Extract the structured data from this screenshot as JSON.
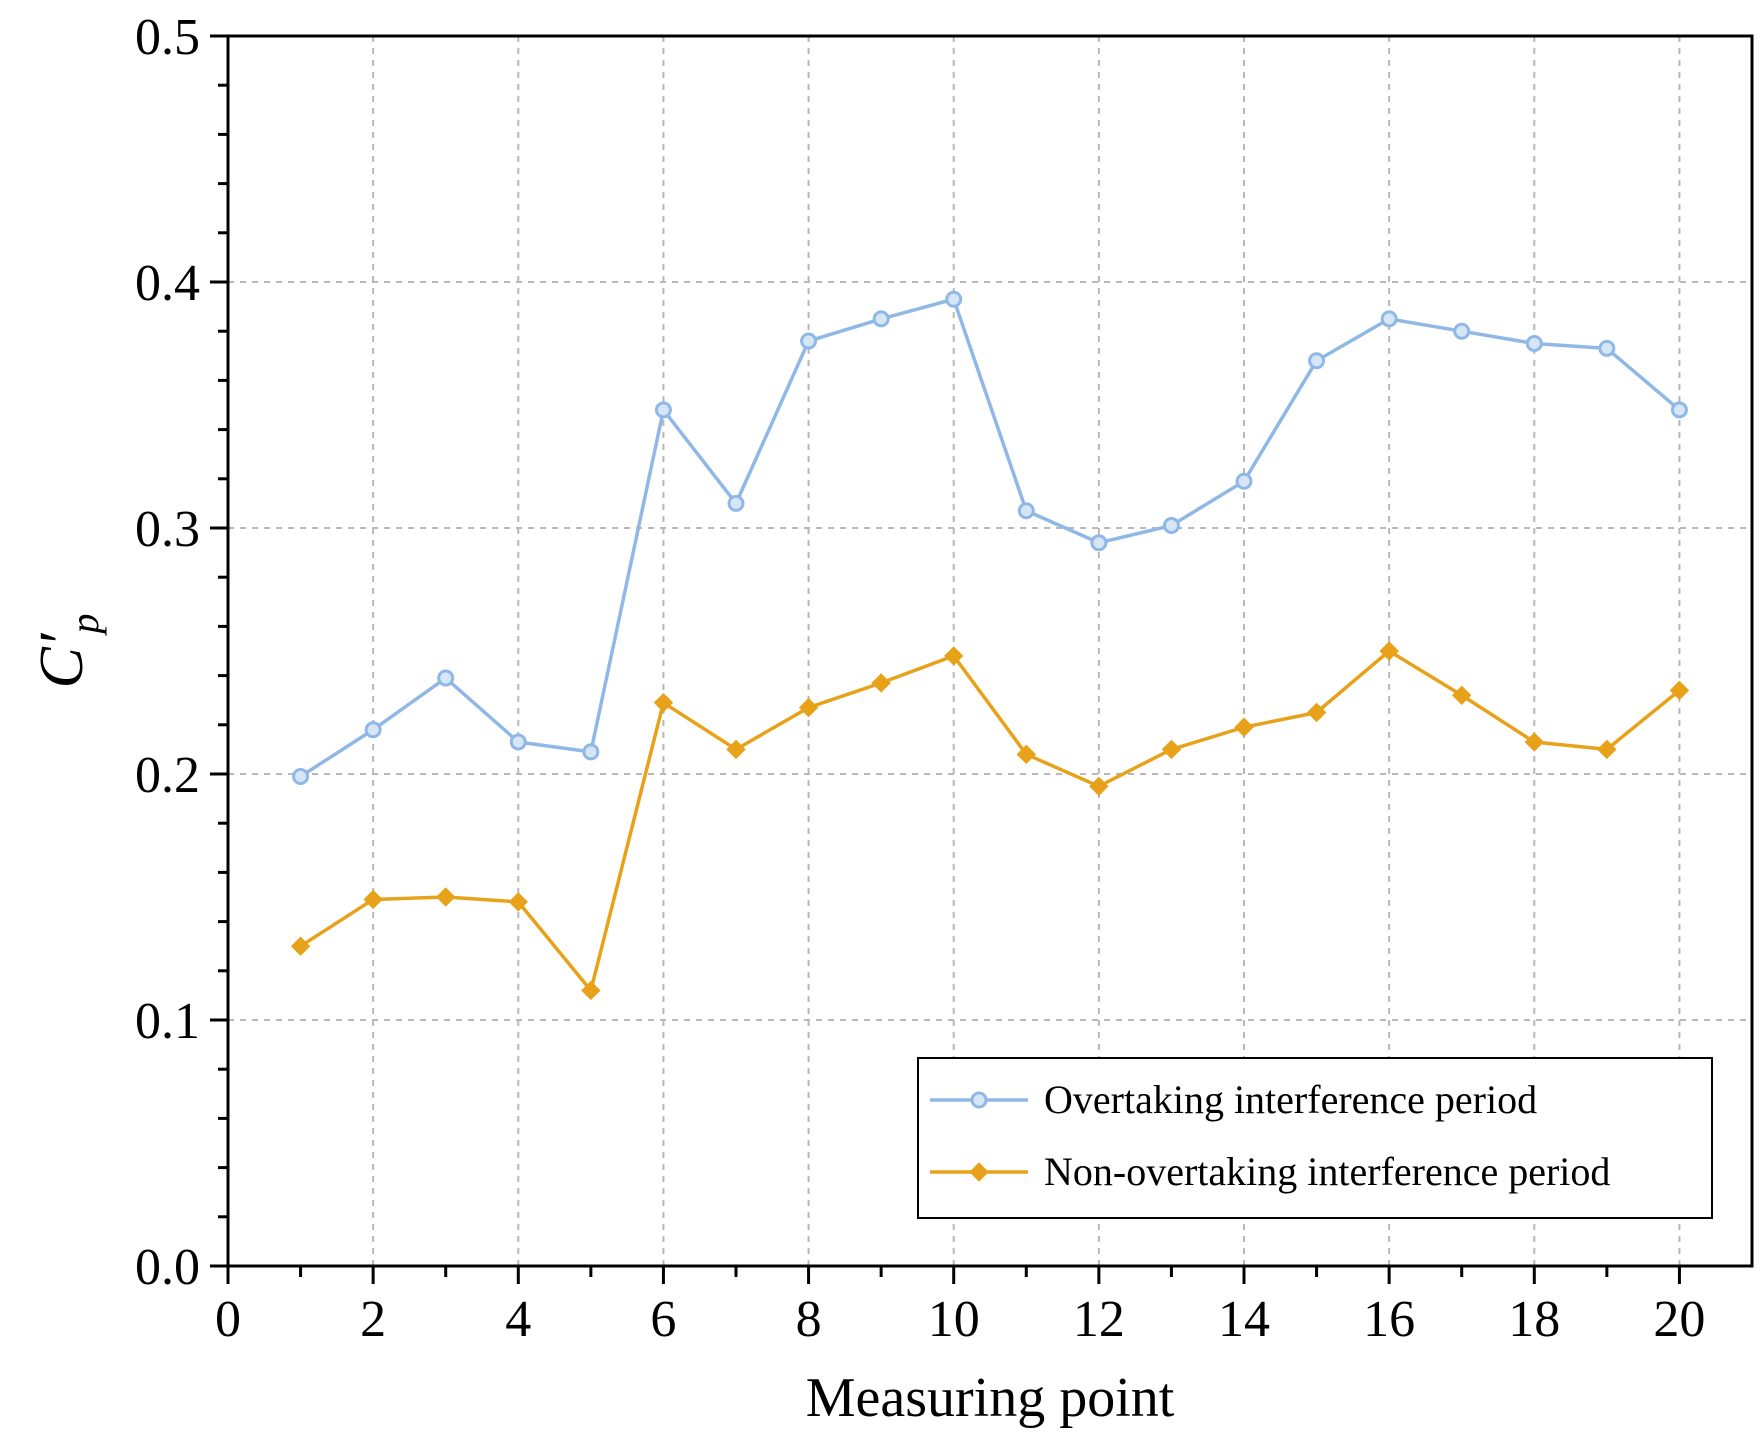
{
  "chart_data": {
    "type": "line",
    "title": "",
    "xlabel": "Measuring point",
    "ylabel": "C′",
    "ylabel_subscript": "p",
    "xlim": [
      0,
      21
    ],
    "ylim": [
      0.0,
      0.5
    ],
    "x_ticks": [
      0,
      2,
      4,
      6,
      8,
      10,
      12,
      14,
      16,
      18,
      20
    ],
    "x_tick_labels": [
      "0",
      "2",
      "4",
      "6",
      "8",
      "10",
      "12",
      "14",
      "16",
      "18",
      "20"
    ],
    "y_ticks": [
      0.0,
      0.1,
      0.2,
      0.3,
      0.4,
      0.5
    ],
    "y_tick_labels": [
      "0.0",
      "0.1",
      "0.2",
      "0.3",
      "0.4",
      "0.5"
    ],
    "grid": true,
    "legend_position": "bottom-right",
    "x": [
      1,
      2,
      3,
      4,
      5,
      6,
      7,
      8,
      9,
      10,
      11,
      12,
      13,
      14,
      15,
      16,
      17,
      18,
      19,
      20
    ],
    "series": [
      {
        "name": "Overtaking interference period",
        "color": "#8fb8e6",
        "marker": "circle",
        "values": [
          0.199,
          0.218,
          0.239,
          0.213,
          0.209,
          0.348,
          0.31,
          0.376,
          0.385,
          0.393,
          0.307,
          0.294,
          0.301,
          0.319,
          0.368,
          0.385,
          0.38,
          0.375,
          0.373,
          0.348
        ]
      },
      {
        "name": "Non-overtaking interference period",
        "color": "#e8a21a",
        "marker": "diamond",
        "values": [
          0.13,
          0.149,
          0.15,
          0.148,
          0.112,
          0.229,
          0.21,
          0.227,
          0.237,
          0.248,
          0.208,
          0.195,
          0.21,
          0.219,
          0.225,
          0.25,
          0.232,
          0.213,
          0.21,
          0.234
        ]
      }
    ]
  }
}
